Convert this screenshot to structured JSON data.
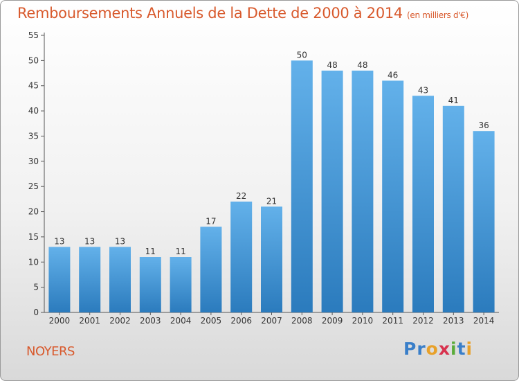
{
  "title": "Remboursements Annuels de la Dette de 2000 à 2014",
  "unit_label": "(en milliers d'€)",
  "commune": "NOYERS",
  "logo": {
    "letters": [
      "P",
      "r",
      "o",
      "x",
      "i",
      "t",
      "i"
    ],
    "colors": [
      "#3a7fc9",
      "#3a7fc9",
      "#e8a12a",
      "#d8324e",
      "#5aab3a",
      "#3a7fc9",
      "#e8a12a"
    ]
  },
  "colors": {
    "bar": "#4a9fdc",
    "bar_light": "#63b1ea",
    "bar_dark": "#2b7bbd",
    "accent": "#d8592c"
  },
  "chart_data": {
    "type": "bar",
    "title": "Remboursements Annuels de la Dette de 2000 à 2014",
    "xlabel": "",
    "ylabel": "(en milliers d'€)",
    "categories": [
      "2000",
      "2001",
      "2002",
      "2003",
      "2004",
      "2005",
      "2006",
      "2007",
      "2008",
      "2009",
      "2010",
      "2011",
      "2012",
      "2013",
      "2014"
    ],
    "values": [
      13,
      13,
      13,
      11,
      11,
      17,
      22,
      21,
      50,
      48,
      48,
      46,
      43,
      41,
      36
    ],
    "ylim": [
      0,
      55
    ],
    "yticks": [
      0,
      5,
      10,
      15,
      20,
      25,
      30,
      35,
      40,
      45,
      50,
      55
    ],
    "grid": false
  }
}
